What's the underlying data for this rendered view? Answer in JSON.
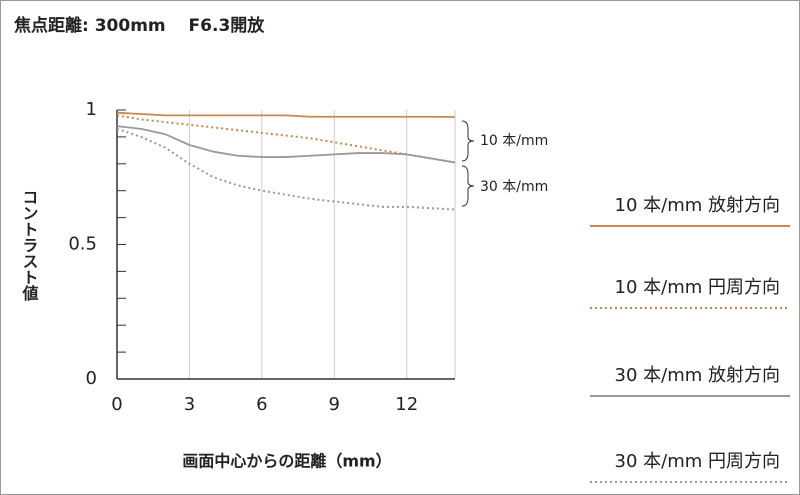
{
  "chart_data": {
    "type": "line",
    "title": "焦点距離: 300mm　 F6.3開放",
    "xlabel": "画面中心からの距離（mm）",
    "ylabel": "コントラスト値",
    "x": [
      0,
      1,
      2,
      3,
      4,
      5,
      6,
      7,
      8,
      9,
      10,
      11,
      12,
      13,
      14
    ],
    "xlim": [
      0,
      14
    ],
    "xticks": [
      0,
      3,
      6,
      9,
      12
    ],
    "ylim": [
      0,
      1
    ],
    "yticks": [
      0,
      0.5,
      1
    ],
    "yminor": [
      0.1,
      0.2,
      0.3,
      0.4,
      0.6,
      0.7,
      0.8,
      0.9
    ],
    "grid": true,
    "annotations": [
      "10 本/mm",
      "30 本/mm"
    ],
    "series": [
      {
        "name": "10 本/mm 放射方向",
        "color": "#c8884a",
        "style": "solid",
        "values": [
          0.99,
          0.985,
          0.98,
          0.98,
          0.98,
          0.98,
          0.98,
          0.98,
          0.975,
          0.975,
          0.975,
          0.975,
          0.975,
          0.975,
          0.974
        ]
      },
      {
        "name": "10 本/mm 円周方向",
        "color": "#c8884a",
        "style": "dotted",
        "values": [
          0.98,
          0.965,
          0.955,
          0.945,
          0.935,
          0.925,
          0.915,
          0.905,
          0.895,
          0.88,
          0.865,
          0.85,
          0.835,
          0.82,
          0.805
        ]
      },
      {
        "name": "30 本/mm 放射方向",
        "color": "#999999",
        "style": "solid",
        "values": [
          0.94,
          0.93,
          0.91,
          0.87,
          0.845,
          0.83,
          0.825,
          0.825,
          0.83,
          0.835,
          0.84,
          0.84,
          0.835,
          0.82,
          0.805
        ]
      },
      {
        "name": "30 本/mm 円周方向",
        "color": "#999999",
        "style": "dotted",
        "values": [
          0.93,
          0.9,
          0.86,
          0.8,
          0.75,
          0.72,
          0.7,
          0.685,
          0.67,
          0.66,
          0.65,
          0.64,
          0.64,
          0.635,
          0.63
        ]
      }
    ]
  }
}
